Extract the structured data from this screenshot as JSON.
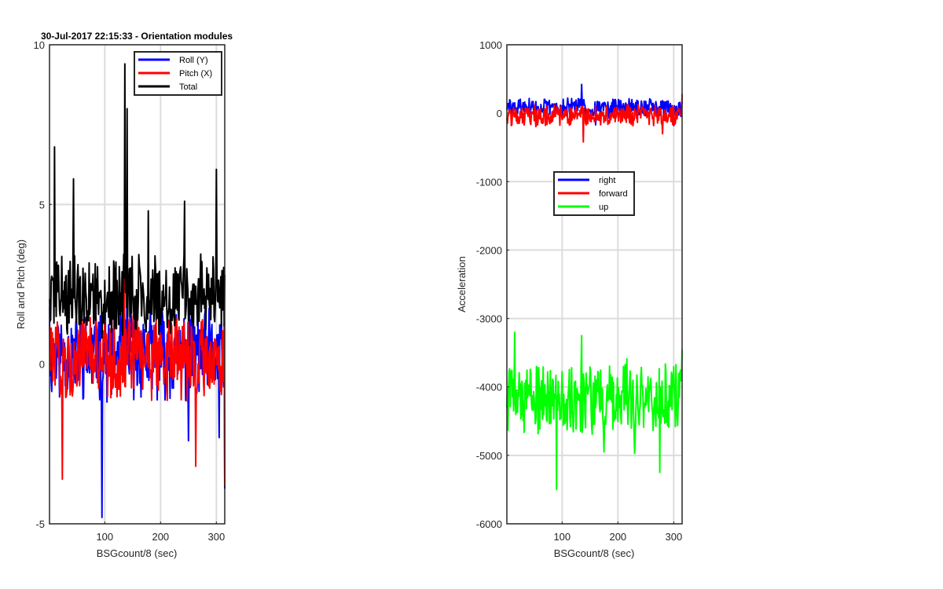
{
  "chart_data": [
    {
      "type": "line",
      "title": "30-Jul-2017 22:15:33 - Orientation modules",
      "xlabel": "BSGcount/8 (sec)",
      "ylabel": "Roll and Pitch (deg)",
      "xlim": [
        1,
        315
      ],
      "ylim": [
        -5,
        10
      ],
      "xticks": [
        100,
        200,
        300
      ],
      "yticks": [
        -5,
        0,
        5,
        10
      ],
      "grid": true,
      "legend_position": "top-right",
      "series": [
        {
          "name": "Roll (Y)",
          "color": "#0000ff",
          "samples": 315,
          "baseline": 0.3,
          "spread": 1.2,
          "keypoints": [
            [
              1,
              1.8
            ],
            [
              95,
              -4.8
            ],
            [
              132,
              2.7
            ],
            [
              140,
              3.0
            ],
            [
              250,
              -2.4
            ],
            [
              305,
              -2.3
            ],
            [
              315,
              -3.9
            ]
          ]
        },
        {
          "name": "Pitch (X)",
          "color": "#ff0000",
          "samples": 315,
          "baseline": 0.2,
          "spread": 1.1,
          "keypoints": [
            [
              1,
              1.2
            ],
            [
              24,
              -3.6
            ],
            [
              135,
              3.2
            ],
            [
              158,
              1.8
            ],
            [
              263,
              -3.2
            ],
            [
              315,
              -3.8
            ]
          ]
        },
        {
          "name": "Total",
          "color": "#000000",
          "samples": 315,
          "baseline": 2.2,
          "spread": 1.1,
          "keypoints": [
            [
              10,
              6.8
            ],
            [
              44,
              5.8
            ],
            [
              136,
              9.4
            ],
            [
              140,
              8.0
            ],
            [
              178,
              4.8
            ],
            [
              243,
              5.1
            ],
            [
              300,
              6.1
            ],
            [
              315,
              2.8
            ]
          ]
        }
      ]
    },
    {
      "type": "line",
      "title": "",
      "xlabel": "BSGcount/8 (sec)",
      "ylabel": "Acceleration",
      "xlim": [
        1,
        315
      ],
      "ylim": [
        -6000,
        1000
      ],
      "xticks": [
        100,
        200,
        300
      ],
      "yticks": [
        -6000,
        -5000,
        -4000,
        -3000,
        -2000,
        -1000,
        0,
        1000
      ],
      "grid": true,
      "legend_position": "center",
      "series": [
        {
          "name": "right",
          "color": "#0000ff",
          "samples": 315,
          "baseline": 80,
          "spread": 120,
          "keypoints": [
            [
              135,
              420
            ],
            [
              160,
              -170
            ],
            [
              300,
              -180
            ]
          ]
        },
        {
          "name": "forward",
          "color": "#ff0000",
          "samples": 315,
          "baseline": -30,
          "spread": 130,
          "keypoints": [
            [
              138,
              -420
            ],
            [
              280,
              -300
            ],
            [
              315,
              280
            ]
          ]
        },
        {
          "name": "up",
          "color": "#00ff00",
          "samples": 315,
          "baseline": -4150,
          "spread": 450,
          "keypoints": [
            [
              15,
              -3200
            ],
            [
              90,
              -5500
            ],
            [
              135,
              -3250
            ],
            [
              175,
              -4950
            ],
            [
              230,
              -4970
            ],
            [
              275,
              -5250
            ],
            [
              315,
              -3450
            ]
          ]
        }
      ]
    }
  ]
}
